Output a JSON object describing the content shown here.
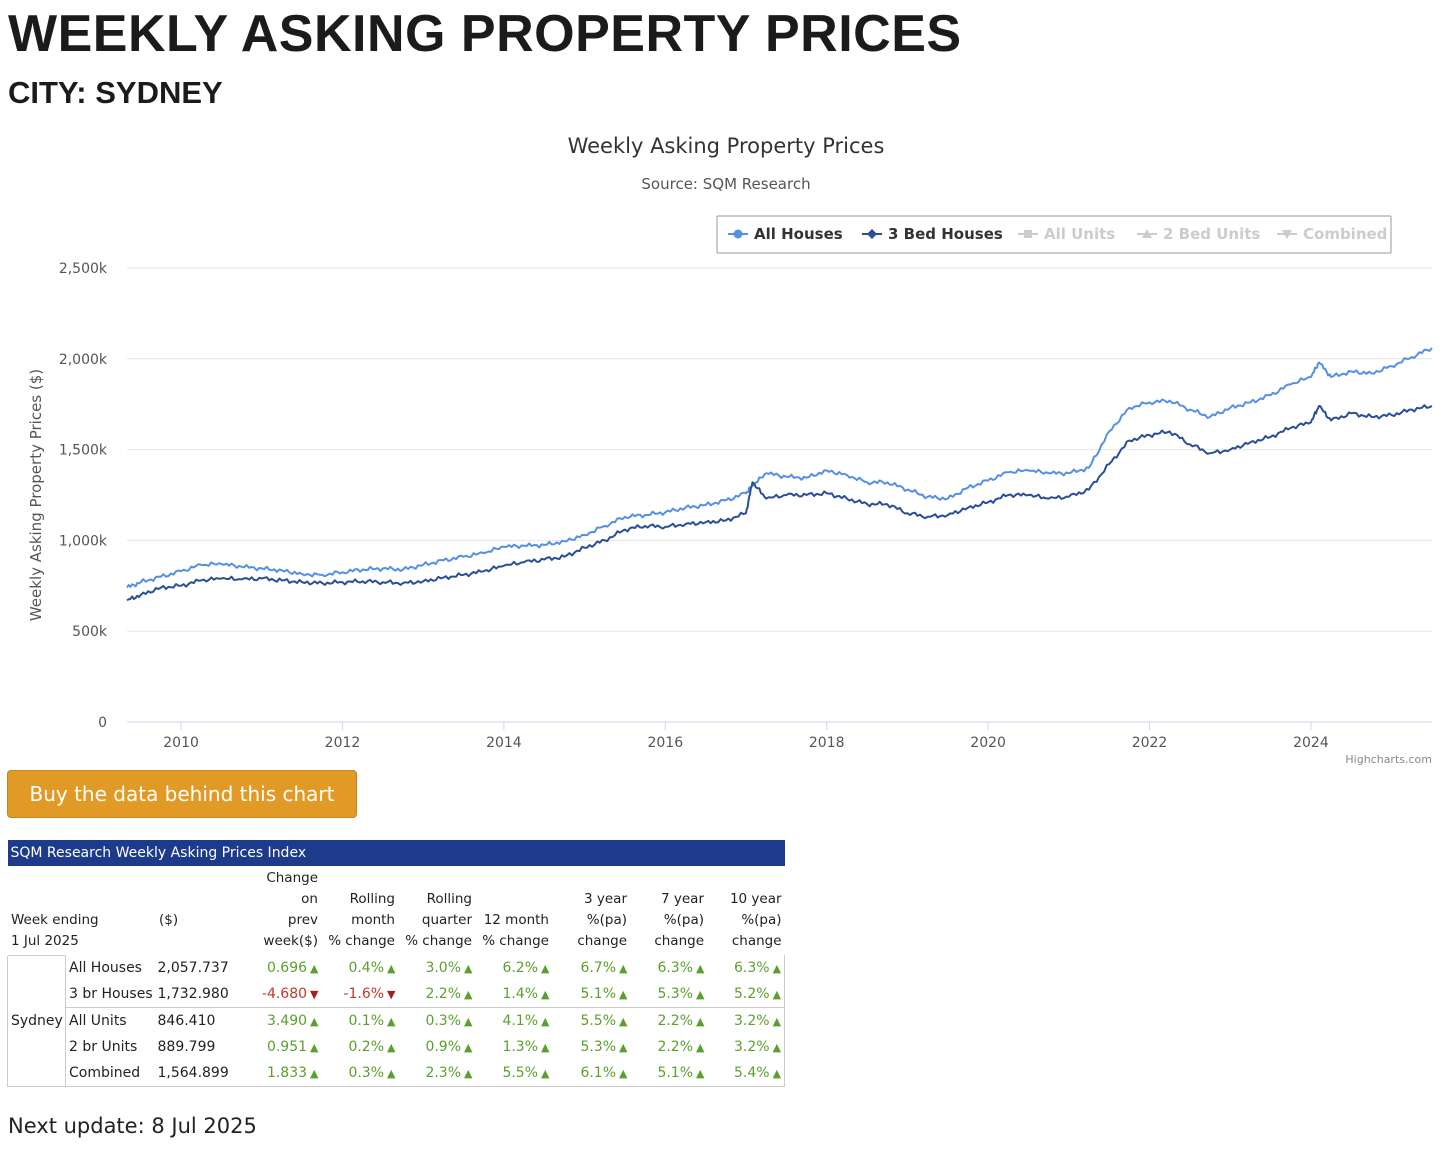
{
  "page": {
    "title": "WEEKLY ASKING PROPERTY PRICES",
    "subtitle": "CITY: SYDNEY",
    "buy_button": "Buy the data behind this chart",
    "next_update": "Next update: 8 Jul 2025"
  },
  "colors": {
    "all_houses": "#5590e3",
    "three_bed": "#2a4f96",
    "inactive": "#cccccc",
    "button": "#e29a26",
    "table_header": "#1e3a8a",
    "positive": "#5aa02c",
    "negative": "#c0392b"
  },
  "chart_data": {
    "type": "line",
    "title": "Weekly Asking Property Prices",
    "subtitle": "Source: SQM Research",
    "ylabel": "Weekly Asking Property Prices ($)",
    "xlabel": "",
    "credits": "Highcharts.com",
    "ylim": [
      0,
      2500000
    ],
    "xlim": [
      2009.33,
      2025.5
    ],
    "y_ticks": [
      {
        "value": 0,
        "label": "0"
      },
      {
        "value": 500000,
        "label": "500k"
      },
      {
        "value": 1000000,
        "label": "1,000k"
      },
      {
        "value": 1500000,
        "label": "1,500k"
      },
      {
        "value": 2000000,
        "label": "2,000k"
      },
      {
        "value": 2500000,
        "label": "2,500k"
      }
    ],
    "x_ticks": [
      {
        "value": 2010,
        "label": "2010"
      },
      {
        "value": 2012,
        "label": "2012"
      },
      {
        "value": 2014,
        "label": "2014"
      },
      {
        "value": 2016,
        "label": "2016"
      },
      {
        "value": 2018,
        "label": "2018"
      },
      {
        "value": 2020,
        "label": "2020"
      },
      {
        "value": 2022,
        "label": "2022"
      },
      {
        "value": 2024,
        "label": "2024"
      }
    ],
    "legend": [
      {
        "name": "All Houses",
        "active": true,
        "marker": "circle"
      },
      {
        "name": "3 Bed Houses",
        "active": true,
        "marker": "diamond"
      },
      {
        "name": "All Units",
        "active": false,
        "marker": "square"
      },
      {
        "name": "2 Bed Units",
        "active": false,
        "marker": "triangle"
      },
      {
        "name": "Combined",
        "active": false,
        "marker": "triangle-down"
      }
    ],
    "series": [
      {
        "name": "All Houses",
        "x": [
          2009.33,
          2009.5,
          2009.75,
          2010.0,
          2010.25,
          2010.5,
          2010.75,
          2011.0,
          2011.25,
          2011.5,
          2011.75,
          2012.0,
          2012.25,
          2012.5,
          2012.75,
          2013.0,
          2013.25,
          2013.5,
          2013.75,
          2014.0,
          2014.25,
          2014.5,
          2014.75,
          2015.0,
          2015.25,
          2015.5,
          2015.75,
          2016.0,
          2016.25,
          2016.5,
          2016.75,
          2017.0,
          2017.08,
          2017.25,
          2017.5,
          2017.75,
          2018.0,
          2018.25,
          2018.5,
          2018.75,
          2019.0,
          2019.25,
          2019.5,
          2019.75,
          2020.0,
          2020.25,
          2020.5,
          2020.75,
          2021.0,
          2021.25,
          2021.5,
          2021.75,
          2022.0,
          2022.25,
          2022.5,
          2022.75,
          2023.0,
          2023.25,
          2023.5,
          2023.75,
          2024.0,
          2024.1,
          2024.25,
          2024.5,
          2024.75,
          2025.0,
          2025.25,
          2025.5
        ],
        "values": [
          740000,
          770000,
          800000,
          830000,
          865000,
          870000,
          855000,
          845000,
          835000,
          815000,
          810000,
          825000,
          840000,
          845000,
          840000,
          865000,
          890000,
          910000,
          930000,
          965000,
          970000,
          975000,
          995000,
          1030000,
          1080000,
          1130000,
          1140000,
          1155000,
          1180000,
          1195000,
          1220000,
          1260000,
          1300000,
          1370000,
          1350000,
          1345000,
          1385000,
          1360000,
          1320000,
          1320000,
          1280000,
          1240000,
          1230000,
          1290000,
          1330000,
          1375000,
          1385000,
          1370000,
          1370000,
          1400000,
          1600000,
          1730000,
          1760000,
          1770000,
          1720000,
          1680000,
          1730000,
          1760000,
          1800000,
          1860000,
          1900000,
          1980000,
          1900000,
          1930000,
          1920000,
          1960000,
          2010000,
          2060000
        ]
      },
      {
        "name": "3 Bed Houses",
        "x": [
          2009.33,
          2009.5,
          2009.75,
          2010.0,
          2010.25,
          2010.5,
          2010.75,
          2011.0,
          2011.25,
          2011.5,
          2011.75,
          2012.0,
          2012.25,
          2012.5,
          2012.75,
          2013.0,
          2013.25,
          2013.5,
          2013.75,
          2014.0,
          2014.25,
          2014.5,
          2014.75,
          2015.0,
          2015.25,
          2015.5,
          2015.75,
          2016.0,
          2016.25,
          2016.5,
          2016.75,
          2017.0,
          2017.08,
          2017.25,
          2017.5,
          2017.75,
          2018.0,
          2018.25,
          2018.5,
          2018.75,
          2019.0,
          2019.25,
          2019.5,
          2019.75,
          2020.0,
          2020.25,
          2020.5,
          2020.75,
          2021.0,
          2021.25,
          2021.5,
          2021.75,
          2022.0,
          2022.25,
          2022.5,
          2022.75,
          2023.0,
          2023.25,
          2023.5,
          2023.75,
          2024.0,
          2024.1,
          2024.25,
          2024.5,
          2024.75,
          2025.0,
          2025.25,
          2025.5
        ],
        "values": [
          670000,
          700000,
          740000,
          750000,
          780000,
          790000,
          785000,
          790000,
          780000,
          770000,
          765000,
          770000,
          775000,
          770000,
          765000,
          775000,
          795000,
          810000,
          830000,
          860000,
          880000,
          895000,
          910000,
          960000,
          1000000,
          1060000,
          1080000,
          1075000,
          1090000,
          1100000,
          1110000,
          1150000,
          1320000,
          1230000,
          1250000,
          1250000,
          1260000,
          1230000,
          1200000,
          1200000,
          1150000,
          1130000,
          1140000,
          1180000,
          1210000,
          1250000,
          1250000,
          1230000,
          1240000,
          1280000,
          1420000,
          1550000,
          1580000,
          1600000,
          1530000,
          1480000,
          1500000,
          1540000,
          1570000,
          1620000,
          1650000,
          1740000,
          1660000,
          1700000,
          1680000,
          1690000,
          1720000,
          1740000
        ]
      }
    ]
  },
  "table": {
    "caption": "SQM Research Weekly Asking Prices Index",
    "headers": {
      "week_ending": "Week ending",
      "week_date": "1 Jul 2025",
      "dollars": "($)",
      "change_prev": [
        "Change",
        "on",
        "prev",
        "week($)"
      ],
      "rolling_month": [
        "Rolling",
        "month",
        "% change"
      ],
      "rolling_quarter": [
        "Rolling",
        "quarter",
        "% change"
      ],
      "twelve_month": [
        "12 month",
        "% change"
      ],
      "three_year": [
        "3 year",
        "%(pa)",
        "change"
      ],
      "seven_year": [
        "7 year",
        "%(pa)",
        "change"
      ],
      "ten_year": [
        "10 year",
        "%(pa)",
        "change"
      ]
    },
    "city": "Sydney",
    "rows": [
      {
        "type": "All Houses",
        "price": "2,057.737",
        "c1": "0.696",
        "c1d": "up",
        "c2": "0.4%",
        "c2d": "up",
        "c3": "3.0%",
        "c3d": "up",
        "c4": "6.2%",
        "c4d": "up",
        "c5": "6.7%",
        "c5d": "up",
        "c6": "6.3%",
        "c6d": "up",
        "c7": "6.3%",
        "c7d": "up"
      },
      {
        "type": "3 br Houses",
        "price": "1,732.980",
        "c1": "-4.680",
        "c1d": "down",
        "c2": "-1.6%",
        "c2d": "down",
        "c3": "2.2%",
        "c3d": "up",
        "c4": "1.4%",
        "c4d": "up",
        "c5": "5.1%",
        "c5d": "up",
        "c6": "5.3%",
        "c6d": "up",
        "c7": "5.2%",
        "c7d": "up"
      },
      {
        "type": "All Units",
        "price": "846.410",
        "c1": "3.490",
        "c1d": "up",
        "c2": "0.1%",
        "c2d": "up",
        "c3": "0.3%",
        "c3d": "up",
        "c4": "4.1%",
        "c4d": "up",
        "c5": "5.5%",
        "c5d": "up",
        "c6": "2.2%",
        "c6d": "up",
        "c7": "3.2%",
        "c7d": "up"
      },
      {
        "type": "2 br Units",
        "price": "889.799",
        "c1": "0.951",
        "c1d": "up",
        "c2": "0.2%",
        "c2d": "up",
        "c3": "0.9%",
        "c3d": "up",
        "c4": "1.3%",
        "c4d": "up",
        "c5": "5.3%",
        "c5d": "up",
        "c6": "2.2%",
        "c6d": "up",
        "c7": "3.2%",
        "c7d": "up"
      },
      {
        "type": "Combined",
        "price": "1,564.899",
        "c1": "1.833",
        "c1d": "up",
        "c2": "0.3%",
        "c2d": "up",
        "c3": "2.3%",
        "c3d": "up",
        "c4": "5.5%",
        "c4d": "up",
        "c5": "6.1%",
        "c5d": "up",
        "c6": "5.1%",
        "c6d": "up",
        "c7": "5.4%",
        "c7d": "up"
      }
    ]
  }
}
